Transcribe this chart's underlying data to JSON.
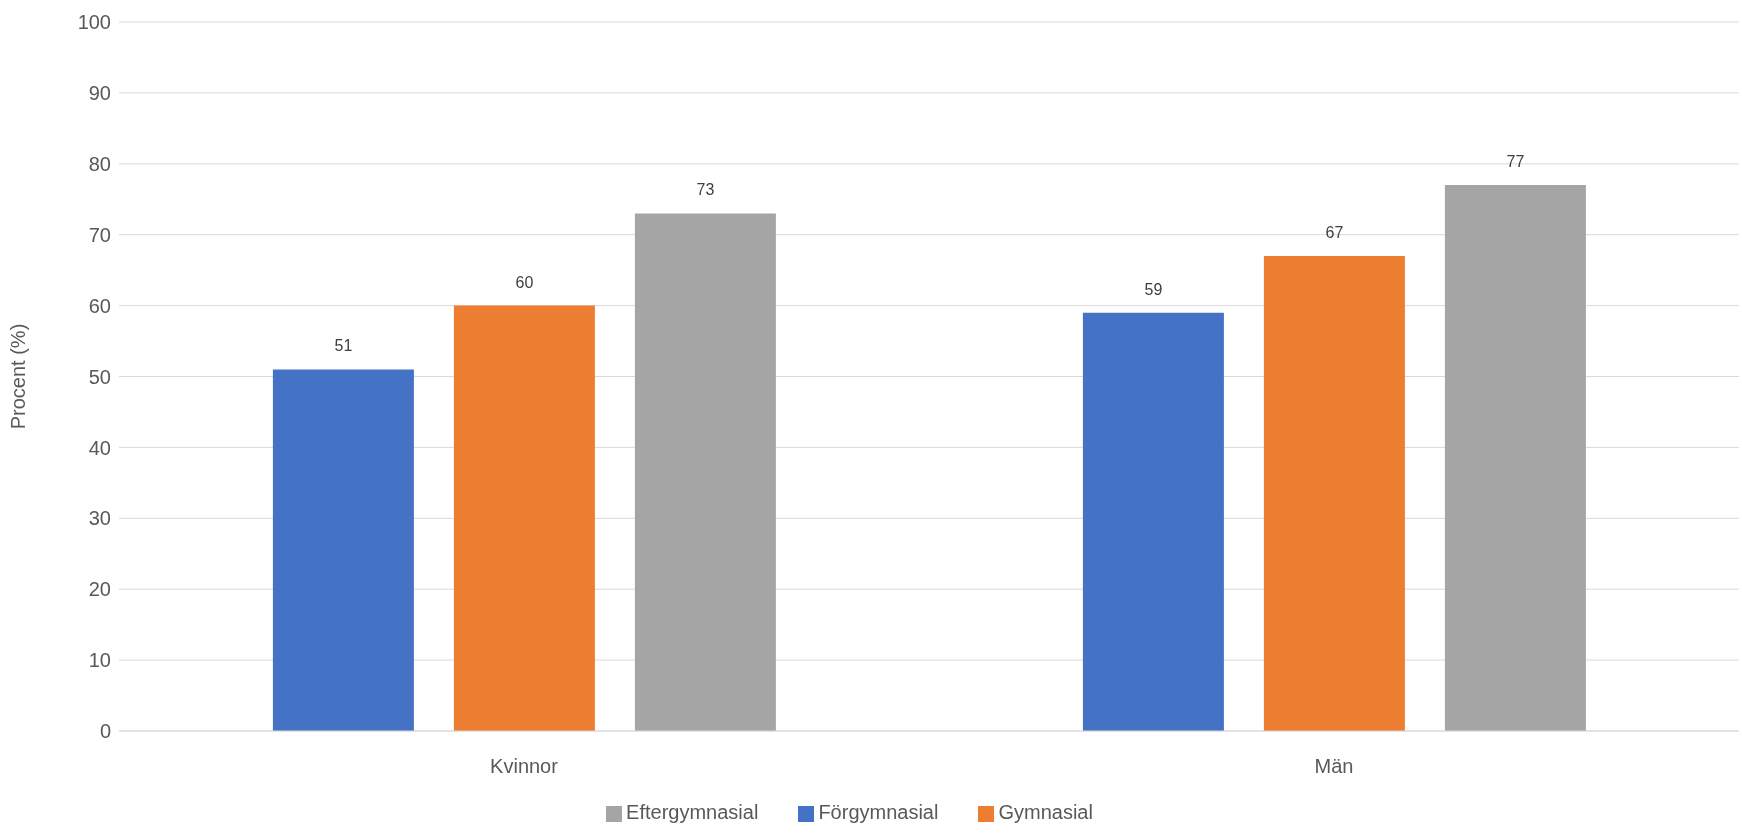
{
  "chart_data": {
    "type": "bar",
    "ylabel": "Procent (%)",
    "categories": [
      "Kvinnor",
      "Män"
    ],
    "series": [
      {
        "name": "Förgymnasial",
        "color": "#4472c4",
        "values": [
          51,
          59
        ]
      },
      {
        "name": "Gymnasial",
        "color": "#ed7d31",
        "values": [
          60,
          67
        ]
      },
      {
        "name": "Eftergymnasial",
        "color": "#a5a5a5",
        "values": [
          73,
          77
        ]
      }
    ],
    "ylim": [
      0,
      100
    ],
    "yticks": [
      0,
      10,
      20,
      30,
      40,
      50,
      60,
      70,
      80,
      90,
      100
    ],
    "grid": "y",
    "legend": "bottom",
    "data_labels": true
  }
}
